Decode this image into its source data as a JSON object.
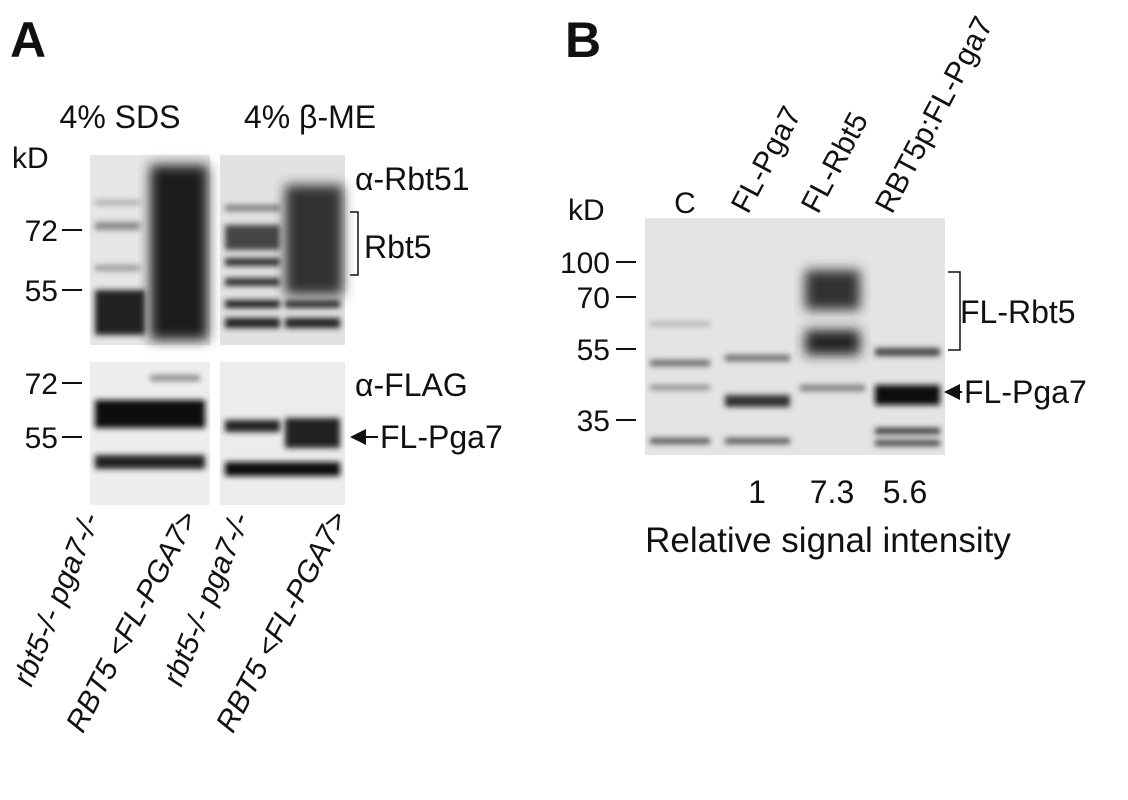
{
  "panel_a": {
    "label": "A",
    "conditions": [
      "4% SDS",
      "4% β-ME"
    ],
    "kd_label": "kD",
    "top_blot": {
      "markers": [
        72,
        55
      ],
      "antibody": "α-Rbt51",
      "bracket_label": "Rbt5"
    },
    "bottom_blot": {
      "markers": [
        72,
        55
      ],
      "antibody": "α-FLAG",
      "arrow_label": "FL-Pga7"
    },
    "lanes": [
      "rbt5-/- pga7-/-",
      "RBT5 <FL-PGA7>",
      "rbt5-/- pga7-/-",
      "RBT5 <FL-PGA7>"
    ]
  },
  "panel_b": {
    "label": "B",
    "kd_label": "kD",
    "markers": [
      100,
      70,
      55,
      35
    ],
    "lanes": [
      "C",
      "FL-Pga7",
      "FL-Rbt5",
      "RBT5p:FL-Pga7"
    ],
    "bracket_label": "FL-Rbt5",
    "arrow_label": "FL-Pga7",
    "intensities": [
      1,
      7.3,
      5.6
    ],
    "intensity_caption": "Relative signal intensity"
  }
}
